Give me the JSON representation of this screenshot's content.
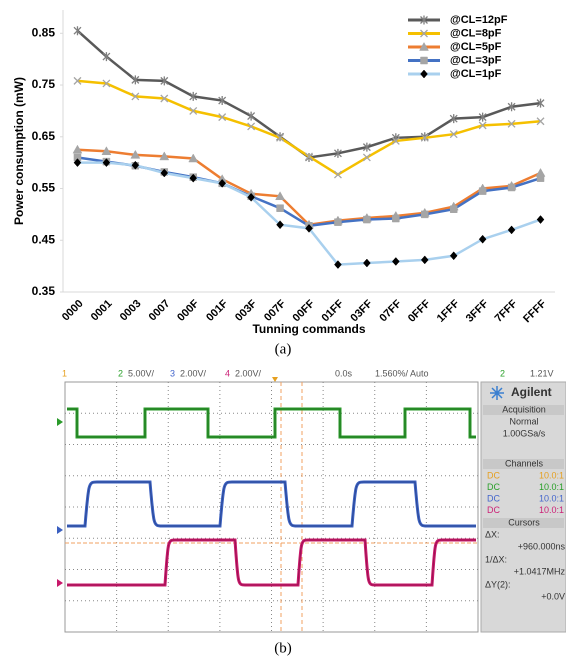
{
  "chart_data": {
    "type": "line",
    "y_label": "Power consumption (mW)",
    "x_label": "Tunning commands",
    "categories": [
      "0000",
      "0001",
      "0003",
      "0007",
      "000F",
      "001F",
      "003F",
      "007F",
      "00FF",
      "01FF",
      "03FF",
      "07FF",
      "0FFF",
      "1FFF",
      "3FFF",
      "7FFF",
      "FFFF"
    ],
    "series": [
      {
        "name": "@CL=12pF",
        "color": "#595959",
        "marker": "asterisk",
        "marker_color": "#7f7f7f",
        "values": [
          0.855,
          0.805,
          0.76,
          0.758,
          0.728,
          0.72,
          0.69,
          0.65,
          0.61,
          0.618,
          0.63,
          0.648,
          0.65,
          0.685,
          0.688,
          0.708,
          0.715
        ]
      },
      {
        "name": "@CL=8pF",
        "color": "#f5c000",
        "marker": "x",
        "marker_color": "#a5a5a5",
        "values": [
          0.758,
          0.753,
          0.728,
          0.724,
          0.7,
          0.688,
          0.67,
          0.648,
          0.612,
          0.577,
          0.61,
          0.642,
          0.648,
          0.655,
          0.672,
          0.675,
          0.68
        ]
      },
      {
        "name": "@CL=5pF",
        "color": "#ed7d31",
        "marker": "triangle",
        "marker_color": "#a5a5a5",
        "values": [
          0.625,
          0.622,
          0.615,
          0.612,
          0.608,
          0.568,
          0.54,
          0.535,
          0.48,
          0.488,
          0.493,
          0.497,
          0.503,
          0.515,
          0.55,
          0.555,
          0.58
        ]
      },
      {
        "name": "@CL=3pF",
        "color": "#4472c4",
        "marker": "square",
        "marker_color": "#a5a5a5",
        "values": [
          0.61,
          0.602,
          0.594,
          0.582,
          0.572,
          0.56,
          0.535,
          0.512,
          0.478,
          0.485,
          0.49,
          0.492,
          0.5,
          0.51,
          0.545,
          0.552,
          0.57
        ]
      },
      {
        "name": "@CL=1pF",
        "color": "#a9d0ee",
        "marker": "diamond",
        "marker_color": "#000000",
        "values": [
          0.6,
          0.6,
          0.595,
          0.58,
          0.57,
          0.56,
          0.533,
          0.48,
          0.473,
          0.403,
          0.406,
          0.409,
          0.412,
          0.42,
          0.452,
          0.47,
          0.49
        ]
      }
    ],
    "ylim": [
      0.35,
      0.895
    ],
    "yticks": [
      0.35,
      0.45,
      0.55,
      0.65,
      0.75,
      0.85
    ],
    "grid": false,
    "legend": "top-right"
  },
  "scope": {
    "header": {
      "ch1": "1",
      "ch2": "2",
      "ch2_scale": "5.00V/",
      "ch3": "3",
      "ch3_scale": "2.00V/",
      "ch4": "4",
      "ch4_scale": "2.00V/",
      "delay": "0.0s",
      "timebase": "1.560%/",
      "mode": "Auto",
      "trigger_source": "2",
      "trigger_level": "1.21V"
    },
    "panel": {
      "brand": "Agilent",
      "acquisition": "Acquisition",
      "acq_mode": "Normal",
      "sample_rate": "1.00GSa/s",
      "channels": "Channels",
      "channel_rows": [
        [
          "DC",
          "10.0:1"
        ],
        [
          "DC",
          "10.0:1"
        ],
        [
          "DC",
          "10.0:1"
        ],
        [
          "DC",
          "10.0:1"
        ]
      ],
      "cursors": "Cursors",
      "dx_label": "ΔX:",
      "dx": "+960.000ns",
      "inv_dx_label": "1/ΔX:",
      "inv_dx": "+1.0417MHz",
      "dy_label": "ΔY(2):",
      "dy": "+0.0V"
    }
  },
  "captions": [
    "(a)",
    "(b)"
  ]
}
